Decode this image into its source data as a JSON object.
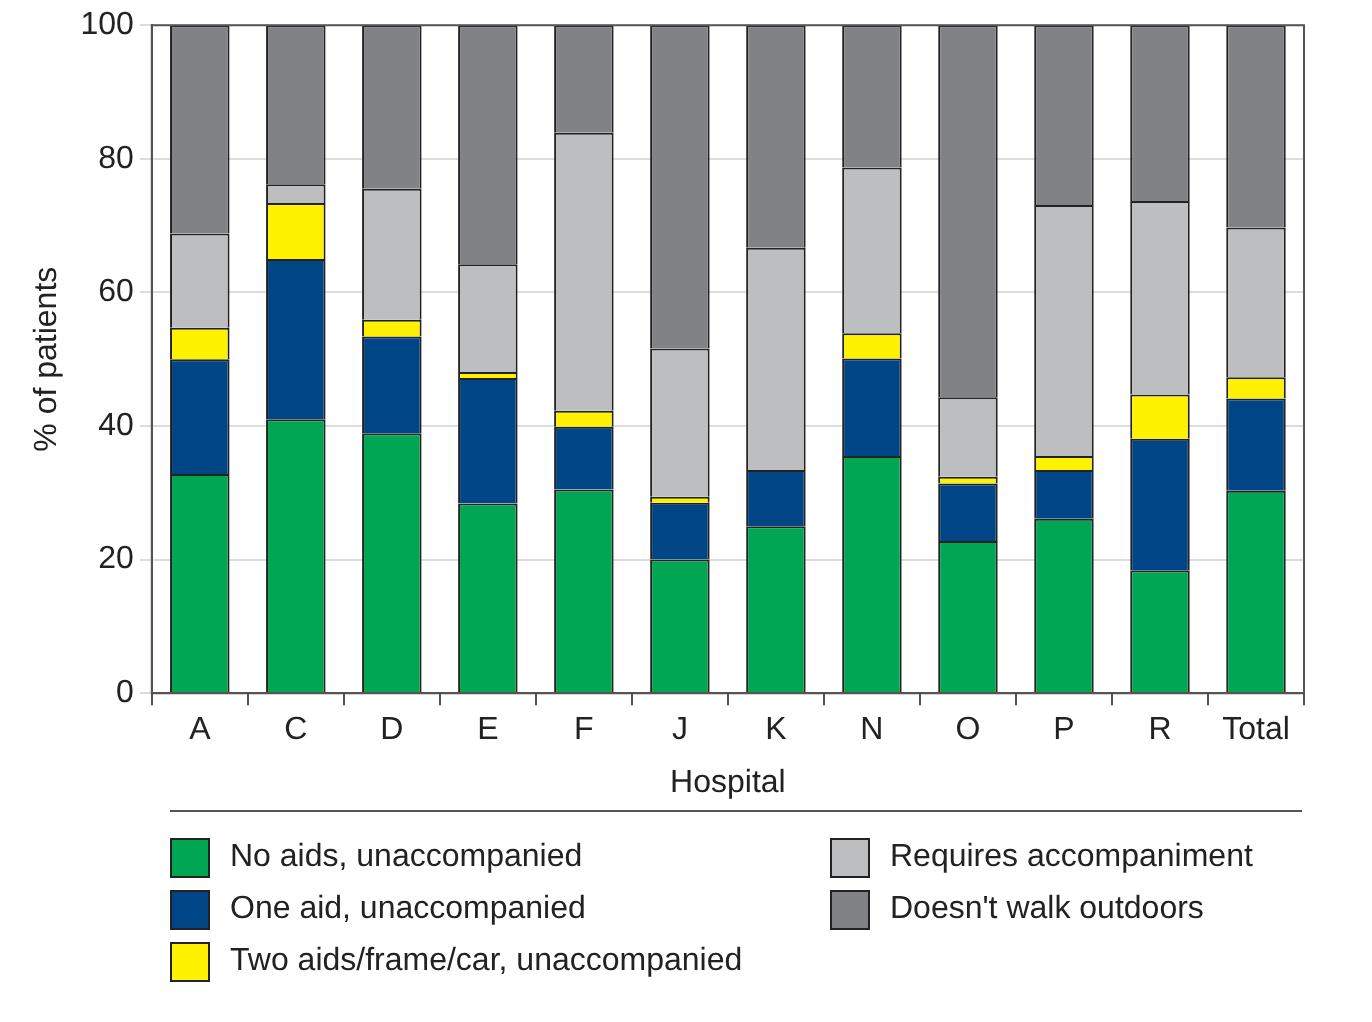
{
  "chart_data": {
    "type": "bar",
    "stacked": true,
    "xlabel": "Hospital",
    "ylabel": "% of patients",
    "categories": [
      "A",
      "C",
      "D",
      "E",
      "F",
      "J",
      "K",
      "N",
      "O",
      "P",
      "R",
      "Total"
    ],
    "ylim": [
      0,
      100
    ],
    "yticks": [
      0,
      20,
      40,
      60,
      80,
      100
    ],
    "grid": "y",
    "legend": "bottom",
    "series": [
      {
        "name": "No aids, unaccompanied",
        "color": "#00a651",
        "values": [
          32.8,
          41.0,
          38.9,
          28.4,
          30.5,
          20.0,
          25.0,
          35.5,
          22.8,
          26.1,
          18.4,
          30.3
        ]
      },
      {
        "name": "One aid, unaccompanied",
        "color": "#004586",
        "values": [
          17.2,
          24.0,
          14.5,
          18.8,
          9.4,
          8.5,
          8.4,
          14.6,
          8.6,
          7.3,
          19.7,
          13.8
        ]
      },
      {
        "name": "Two aids/frame/car, unaccompanied",
        "color": "#fff200",
        "values": [
          4.7,
          8.4,
          2.5,
          0.9,
          2.4,
          0.9,
          0,
          3.8,
          1.0,
          2.1,
          6.6,
          3.2
        ]
      },
      {
        "name": "Requires accompaniment",
        "color": "#bcbec0",
        "values": [
          14.1,
          2.8,
          19.6,
          16.1,
          41.6,
          22.2,
          33.3,
          24.8,
          11.9,
          37.6,
          29.0,
          22.4
        ]
      },
      {
        "name": "Doesn't walk outdoors",
        "color": "#808285",
        "values": [
          31.2,
          23.8,
          24.5,
          35.8,
          16.1,
          48.4,
          33.3,
          21.3,
          55.7,
          26.9,
          26.3,
          30.3
        ]
      }
    ]
  }
}
